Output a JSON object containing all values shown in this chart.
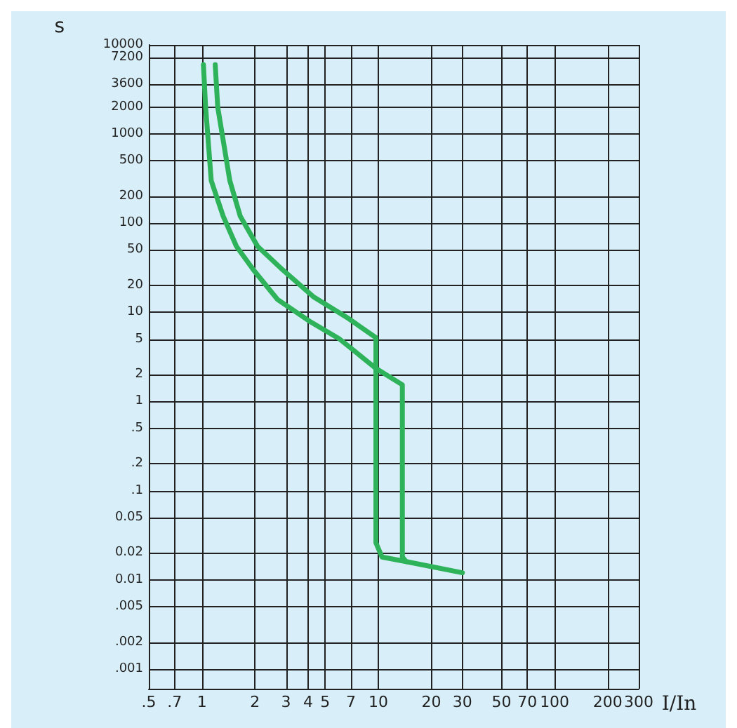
{
  "chart_data": {
    "type": "line",
    "xlabel": "I/In",
    "ylabel": "s",
    "log": "xy",
    "grid": true,
    "marker": "none",
    "line_style": "solid",
    "xlim": [
      0.5,
      300
    ],
    "xticks": [
      {
        "value": 0.5,
        "label": ".5"
      },
      {
        "value": 0.7,
        "label": ".7"
      },
      1,
      2,
      3,
      4,
      5,
      7,
      10,
      20,
      30,
      50,
      70,
      100,
      200,
      300
    ],
    "ylim": [
      0.0006,
      10000
    ],
    "yticks": [
      10000,
      7200,
      3600,
      2000,
      1000,
      500,
      200,
      100,
      50,
      20,
      10,
      5,
      2,
      1,
      {
        "value": 0.5,
        "label": ".5"
      },
      {
        "value": 0.2,
        "label": ".2"
      },
      {
        "value": 0.1,
        "label": ".1"
      },
      0.05,
      0.02,
      0.01,
      {
        "value": 0.005,
        "label": ".005"
      },
      {
        "value": 0.002,
        "label": ".002"
      },
      {
        "value": 0.001,
        "label": ".001"
      }
    ],
    "series": [
      {
        "color": "#2eb35a",
        "x": [
          1.02,
          1.05,
          1.13,
          1.32,
          1.57,
          1.96,
          2.68,
          4.06,
          6.05,
          9.7,
          13.7,
          13.7,
          14.4,
          30
        ],
        "values": [
          6000,
          2000,
          300,
          120,
          55,
          30,
          14,
          8,
          5,
          2.35,
          1.54,
          0.018,
          0.016,
          0.012
        ]
      },
      {
        "color": "#2eb35a",
        "x": [
          1.19,
          1.23,
          1.44,
          1.65,
          2.07,
          2.87,
          4.28,
          6.8,
          9.7,
          9.7,
          10.5,
          14.4
        ],
        "values": [
          6000,
          2000,
          300,
          120,
          55,
          30,
          15,
          8.5,
          5.2,
          0.026,
          0.018,
          0.016
        ]
      }
    ]
  }
}
